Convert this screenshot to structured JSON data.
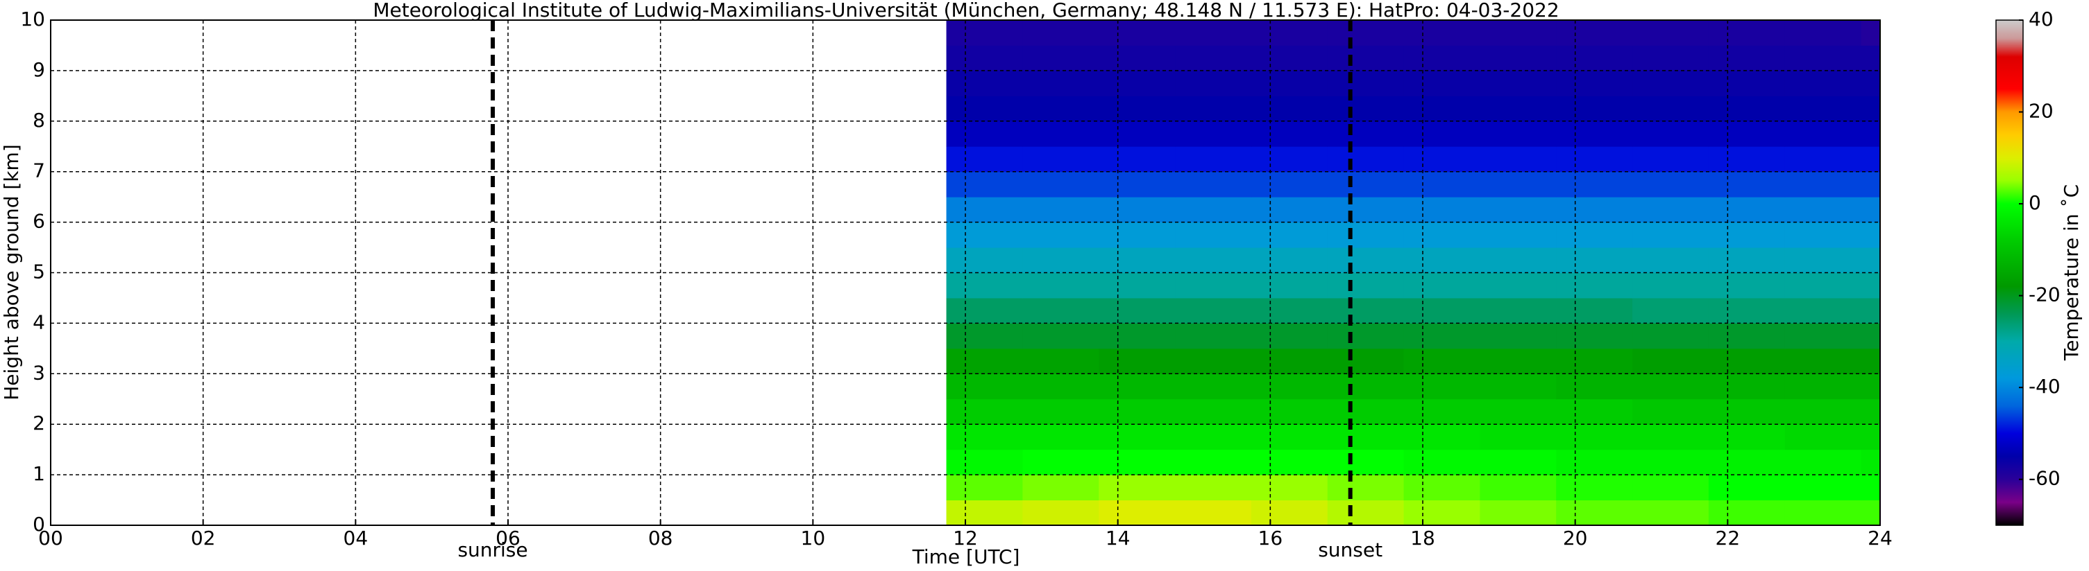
{
  "chart_data": {
    "type": "heatmap",
    "title": "Meteorological Institute of Ludwig-Maximilians-Universität (München, Germany; 48.148 N / 11.573 E):    HatPro: 04-03-2022",
    "xlabel": "Time [UTC]",
    "ylabel": "Height above ground [km]",
    "colorbar_label": "Temperature in ˚C",
    "xlim": [
      0,
      24
    ],
    "xticks": [
      {
        "value": 0,
        "label": "00"
      },
      {
        "value": 2,
        "label": "02"
      },
      {
        "value": 4,
        "label": "04"
      },
      {
        "value": 6,
        "label": "06"
      },
      {
        "value": 8,
        "label": "08"
      },
      10,
      12,
      14,
      16,
      18,
      20,
      22,
      24
    ],
    "ylim": [
      0,
      10
    ],
    "yticks": [
      0,
      1,
      2,
      3,
      4,
      5,
      6,
      7,
      8,
      9,
      10
    ],
    "clim": [
      -70,
      40
    ],
    "cticks": [
      -60,
      -40,
      -20,
      0,
      20,
      40
    ],
    "grid": true,
    "colormap": [
      {
        "value": -70,
        "color": "#000000"
      },
      {
        "value": -65,
        "color": "#7a0088"
      },
      {
        "value": -60,
        "color": "#2a0099"
      },
      {
        "value": -55,
        "color": "#0000aa"
      },
      {
        "value": -50,
        "color": "#0000dd"
      },
      {
        "value": -44,
        "color": "#0066dd"
      },
      {
        "value": -38,
        "color": "#0099dd"
      },
      {
        "value": -30,
        "color": "#00aaaa"
      },
      {
        "value": -24,
        "color": "#009955"
      },
      {
        "value": -18,
        "color": "#009900"
      },
      {
        "value": -8,
        "color": "#00cc00"
      },
      {
        "value": 0,
        "color": "#00ff00"
      },
      {
        "value": 5,
        "color": "#99ff00"
      },
      {
        "value": 10,
        "color": "#ddee00"
      },
      {
        "value": 15,
        "color": "#ffcc00"
      },
      {
        "value": 20,
        "color": "#ff9900"
      },
      {
        "value": 25,
        "color": "#ff0000"
      },
      {
        "value": 32,
        "color": "#dd0000"
      },
      {
        "value": 36,
        "color": "#cc9999"
      },
      {
        "value": 40,
        "color": "#cccccc"
      }
    ],
    "annotations": [
      {
        "text": "sunrise",
        "x": 5.8
      },
      {
        "text": "sunset",
        "x": 17.05
      }
    ],
    "x": [
      11.75,
      12.75,
      13.75,
      14.75,
      15.75,
      16.75,
      17.75,
      18.75,
      19.75,
      20.75,
      21.75,
      22.75,
      23.75
    ],
    "y": [
      0,
      0.5,
      1,
      1.5,
      2,
      2.5,
      3,
      3.5,
      4,
      4.5,
      5,
      5.5,
      6,
      6.5,
      7,
      7.5,
      8,
      8.5,
      9,
      9.5
    ],
    "z": [
      [
        8,
        9,
        10,
        10,
        9,
        7,
        5,
        4,
        3,
        3,
        2,
        2,
        2
      ],
      [
        3,
        4,
        5,
        5,
        5,
        4,
        3,
        2,
        1,
        1,
        0,
        0,
        0
      ],
      [
        -1,
        0,
        0,
        0,
        0,
        0,
        -1,
        -1,
        -2,
        -2,
        -2,
        -2,
        -3
      ],
      [
        -4,
        -4,
        -4,
        -4,
        -4,
        -4,
        -4,
        -5,
        -5,
        -5,
        -5,
        -6,
        -6
      ],
      [
        -8,
        -8,
        -8,
        -8,
        -8,
        -8,
        -8,
        -8,
        -8,
        -9,
        -9,
        -9,
        -9
      ],
      [
        -12,
        -12,
        -12,
        -12,
        -12,
        -12,
        -12,
        -12,
        -13,
        -13,
        -13,
        -13,
        -13
      ],
      [
        -16,
        -16,
        -17,
        -17,
        -17,
        -17,
        -16,
        -16,
        -16,
        -17,
        -17,
        -17,
        -17
      ],
      [
        -21,
        -21,
        -21,
        -21,
        -21,
        -21,
        -21,
        -21,
        -21,
        -21,
        -21,
        -21,
        -21
      ],
      [
        -25,
        -25,
        -25,
        -25,
        -25,
        -25,
        -25,
        -25,
        -25,
        -26,
        -26,
        -26,
        -26
      ],
      [
        -29,
        -29,
        -29,
        -29,
        -29,
        -29,
        -29,
        -29,
        -29,
        -29,
        -29,
        -29,
        -29
      ],
      [
        -33,
        -33,
        -33,
        -33,
        -33,
        -33,
        -33,
        -33,
        -33,
        -33,
        -33,
        -33,
        -33
      ],
      [
        -37,
        -37,
        -37,
        -37,
        -37,
        -37,
        -37,
        -37,
        -37,
        -37,
        -37,
        -37,
        -37
      ],
      [
        -41,
        -41,
        -41,
        -41,
        -41,
        -41,
        -41,
        -41,
        -41,
        -41,
        -41,
        -41,
        -41
      ],
      [
        -46,
        -46,
        -46,
        -46,
        -46,
        -46,
        -46,
        -46,
        -46,
        -46,
        -46,
        -46,
        -46
      ],
      [
        -49,
        -49,
        -49,
        -49,
        -49,
        -49,
        -49,
        -49,
        -49,
        -49,
        -49,
        -49,
        -49
      ],
      [
        -53,
        -53,
        -53,
        -53,
        -53,
        -53,
        -53,
        -53,
        -53,
        -53,
        -53,
        -53,
        -53
      ],
      [
        -55,
        -55,
        -55,
        -55,
        -55,
        -55,
        -55,
        -55,
        -55,
        -55,
        -55,
        -55,
        -55
      ],
      [
        -56,
        -56,
        -56,
        -56,
        -56,
        -56,
        -56,
        -56,
        -56,
        -56,
        -56,
        -56,
        -56
      ],
      [
        -57,
        -57,
        -57,
        -57,
        -57,
        -57,
        -57,
        -57,
        -57,
        -57,
        -57,
        -57,
        -57
      ],
      [
        -58,
        -58,
        -58,
        -58,
        -58,
        -58,
        -58,
        -58,
        -58,
        -58,
        -58,
        -58,
        -59
      ]
    ]
  }
}
